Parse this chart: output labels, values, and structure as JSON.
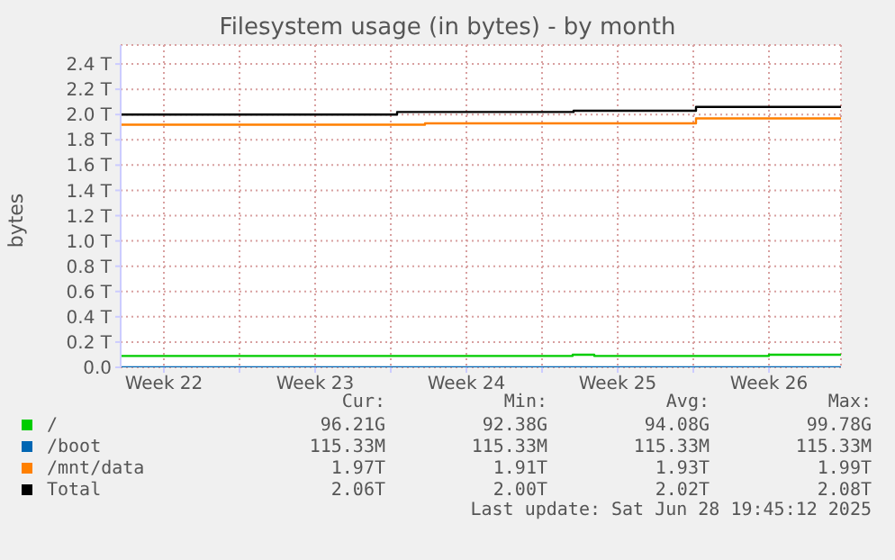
{
  "chart_data": {
    "type": "step",
    "title": "Filesystem usage (in bytes) - by month",
    "ylabel": "bytes",
    "xlim": [
      "2025-05-27T12:00",
      "2025-06-29T20:00"
    ],
    "xticks": [
      {
        "value": "2025-05-29T12:00",
        "label": "Week 22"
      },
      {
        "value": "2025-06-02T00:00",
        "label": null
      },
      {
        "value": "2025-06-05T12:00",
        "label": "Week 23"
      },
      {
        "value": "2025-06-09T00:00",
        "label": null
      },
      {
        "value": "2025-06-12T12:00",
        "label": "Week 24"
      },
      {
        "value": "2025-06-16T00:00",
        "label": null
      },
      {
        "value": "2025-06-19T12:00",
        "label": "Week 25"
      },
      {
        "value": "2025-06-23T00:00",
        "label": null
      },
      {
        "value": "2025-06-26T12:00",
        "label": "Week 26"
      }
    ],
    "ylim": [
      0,
      2.55
    ],
    "yticks": [
      {
        "value": 0,
        "label": "0.0"
      },
      {
        "value": 0.2,
        "label": "0.2 T"
      },
      {
        "value": 0.4,
        "label": "0.4 T"
      },
      {
        "value": 0.6,
        "label": "0.6 T"
      },
      {
        "value": 0.8,
        "label": "0.8 T"
      },
      {
        "value": 1.0,
        "label": "1.0 T"
      },
      {
        "value": 1.2,
        "label": "1.2 T"
      },
      {
        "value": 1.4,
        "label": "1.4 T"
      },
      {
        "value": 1.6,
        "label": "1.6 T"
      },
      {
        "value": 1.8,
        "label": "1.8 T"
      },
      {
        "value": 2.0,
        "label": "2.0 T"
      },
      {
        "value": 2.2,
        "label": "2.2 T"
      },
      {
        "value": 2.4,
        "label": "2.4 T"
      }
    ],
    "grid": true,
    "legend": "bottom",
    "series": [
      {
        "name": "/",
        "color": "#00cc00",
        "x": [
          "2025-05-27T12:00",
          "2025-06-17T10:00",
          "2025-06-18T10:00",
          "2025-06-26T12:00",
          "2025-06-29T20:00"
        ],
        "values": [
          0.09,
          0.1,
          0.09,
          0.1,
          0.1
        ]
      },
      {
        "name": "/boot",
        "color": "#0066b3",
        "x": [
          "2025-05-27T12:00",
          "2025-06-29T20:00"
        ],
        "values": [
          0,
          0
        ]
      },
      {
        "name": "/mnt/data",
        "color": "#ff8000",
        "x": [
          "2025-05-27T12:00",
          "2025-06-10T14:00",
          "2025-06-23T03:00",
          "2025-06-29T20:00"
        ],
        "values": [
          1.92,
          1.93,
          1.97,
          1.97
        ]
      },
      {
        "name": "Total",
        "color": "#000000",
        "x": [
          "2025-05-27T12:00",
          "2025-06-09T07:00",
          "2025-06-17T11:00",
          "2025-06-23T03:00",
          "2025-06-29T20:00"
        ],
        "values": [
          2.0,
          2.02,
          2.03,
          2.06,
          2.06
        ]
      }
    ],
    "annotations": [
      "Cur:",
      "Min:",
      "Avg:",
      "Max:",
      "96.21G",
      "92.38G",
      "94.08G",
      "99.78G",
      "115.33M",
      "115.33M",
      "115.33M",
      "115.33M",
      "1.97T",
      "1.91T",
      "1.93T",
      "1.99T",
      "2.06T",
      "2.00T",
      "2.02T",
      "2.08T",
      "Last update: Sat Jun 28 19:45:12 2025"
    ]
  }
}
